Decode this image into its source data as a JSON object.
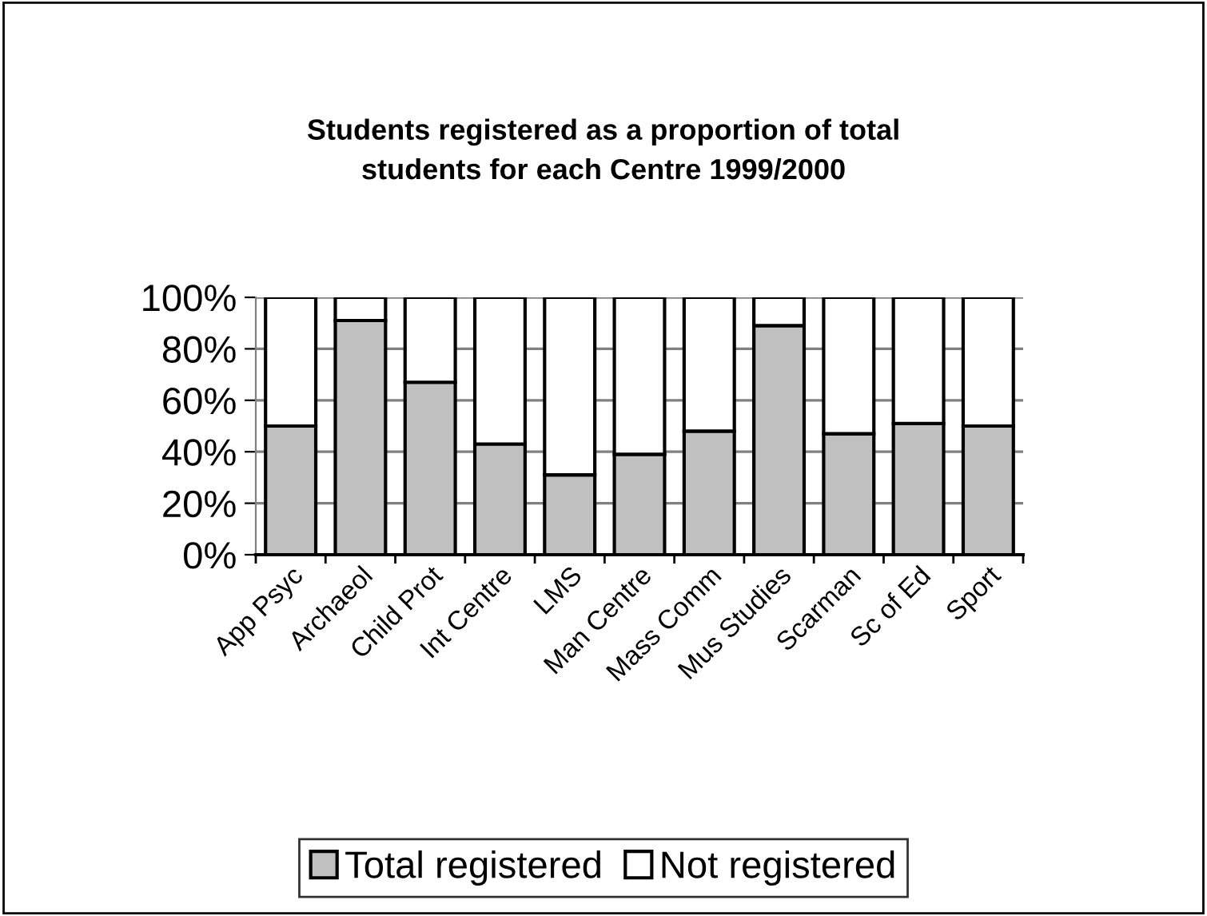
{
  "chart_data": {
    "type": "bar",
    "title": "Students registered as a proportion of total\nstudents for each Centre 1999/2000",
    "categories": [
      "App Psyc",
      "Archaeol",
      "Child Prot",
      "Int Centre",
      "LMS",
      "Man Centre",
      "Mass Comm",
      "Mus Studies",
      "Scarman",
      "Sc of Ed",
      "Sport"
    ],
    "stacked": true,
    "series": [
      {
        "name": "Total registered",
        "color": "#c0c0c0",
        "values": [
          50,
          91,
          67,
          43,
          31,
          39,
          48,
          89,
          47,
          51,
          50
        ]
      },
      {
        "name": "Not registered",
        "color": "#ffffff",
        "values": [
          50,
          9,
          33,
          57,
          69,
          61,
          52,
          11,
          53,
          49,
          50
        ]
      }
    ],
    "ylim": [
      0,
      100
    ],
    "yticks": [
      {
        "value": 0,
        "label": "0%"
      },
      {
        "value": 20,
        "label": "20%"
      },
      {
        "value": 40,
        "label": "40%"
      },
      {
        "value": 60,
        "label": "60%"
      },
      {
        "value": 80,
        "label": "80%"
      },
      {
        "value": 100,
        "label": "100%"
      }
    ],
    "grid": "y",
    "legend": "bottom"
  }
}
